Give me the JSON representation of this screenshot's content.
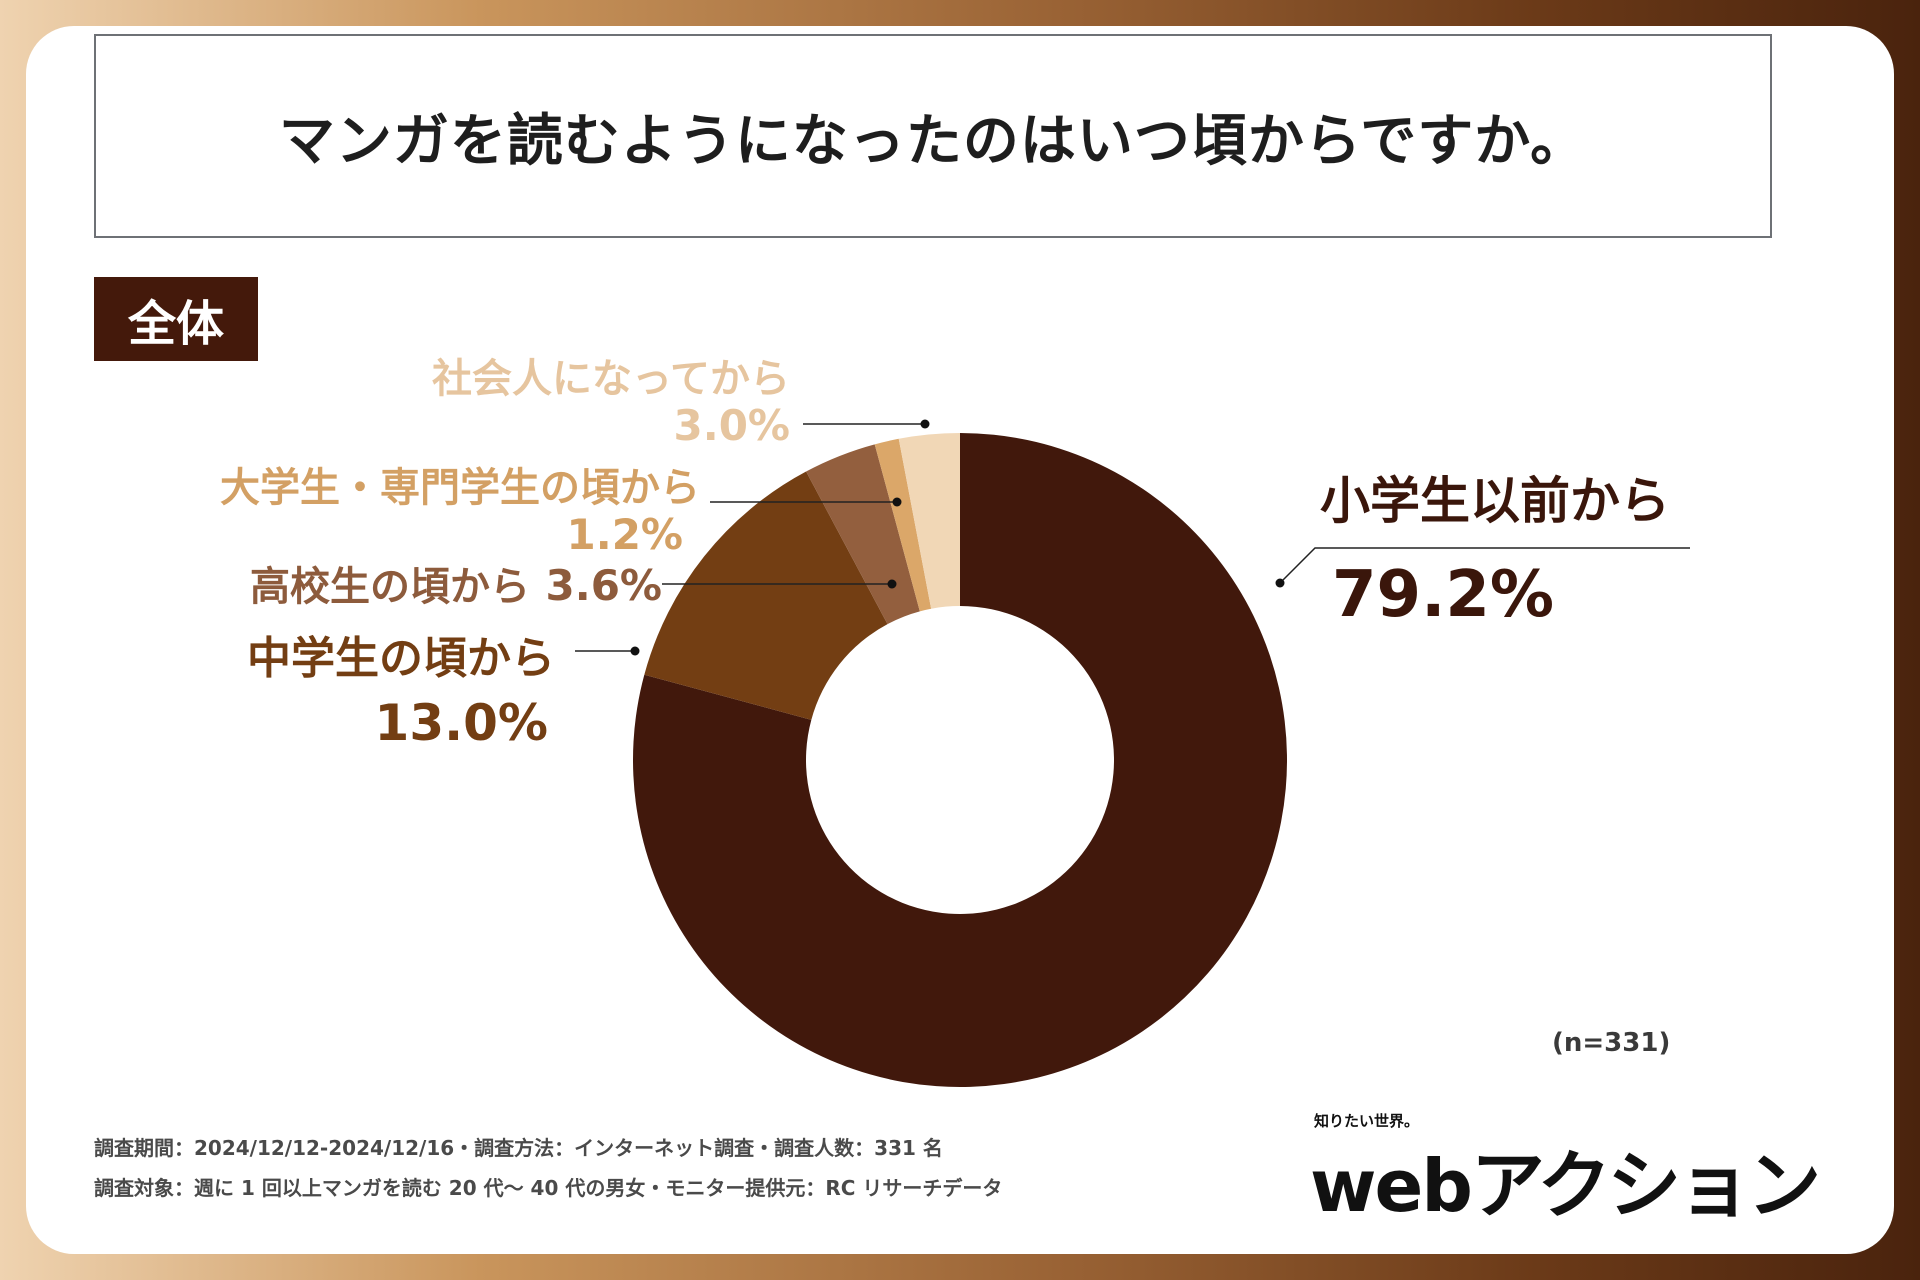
{
  "title": "マンガを読むようになったのはいつ頃からですか。",
  "segment_label": "全体",
  "sample_size": "(n=331)",
  "notes": {
    "line1": "調査期間：2024/12/12-2024/12/16・調査方法：インターネット調査・調査人数：331 名",
    "line2": "調査対象：週に 1 回以上マンガを読む 20 代〜 40 代の男女・モニター提供元：RC リサーチデータ"
  },
  "logo": {
    "tagline": "知りたい世界。",
    "web": "web",
    "kana": "アクション"
  },
  "chart_data": {
    "type": "pie",
    "donut": true,
    "start": "top",
    "direction": "clockwise",
    "title": "マンガを読むようになったのはいつ頃からですか。",
    "slices": [
      {
        "label": "小学生以前から",
        "value": 79.2,
        "display": "79.2%",
        "color": "#41180c",
        "label_color": "#3a160b"
      },
      {
        "label": "中学生の頃から",
        "value": 13.0,
        "display": "13.0%",
        "color": "#733e13",
        "label_color": "#733e13"
      },
      {
        "label": "高校生の頃から",
        "value": 3.6,
        "display": "3.6%",
        "color": "#935f3e",
        "label_color": "#8d5b3c"
      },
      {
        "label": "大学生・専門学生の頃から",
        "value": 1.2,
        "display": "1.2%",
        "color": "#dba769",
        "label_color": "#d3a064"
      },
      {
        "label": "社会人になってから",
        "value": 3.0,
        "display": "3.0%",
        "color": "#f1d7b6",
        "label_color": "#e6c59f"
      }
    ]
  }
}
